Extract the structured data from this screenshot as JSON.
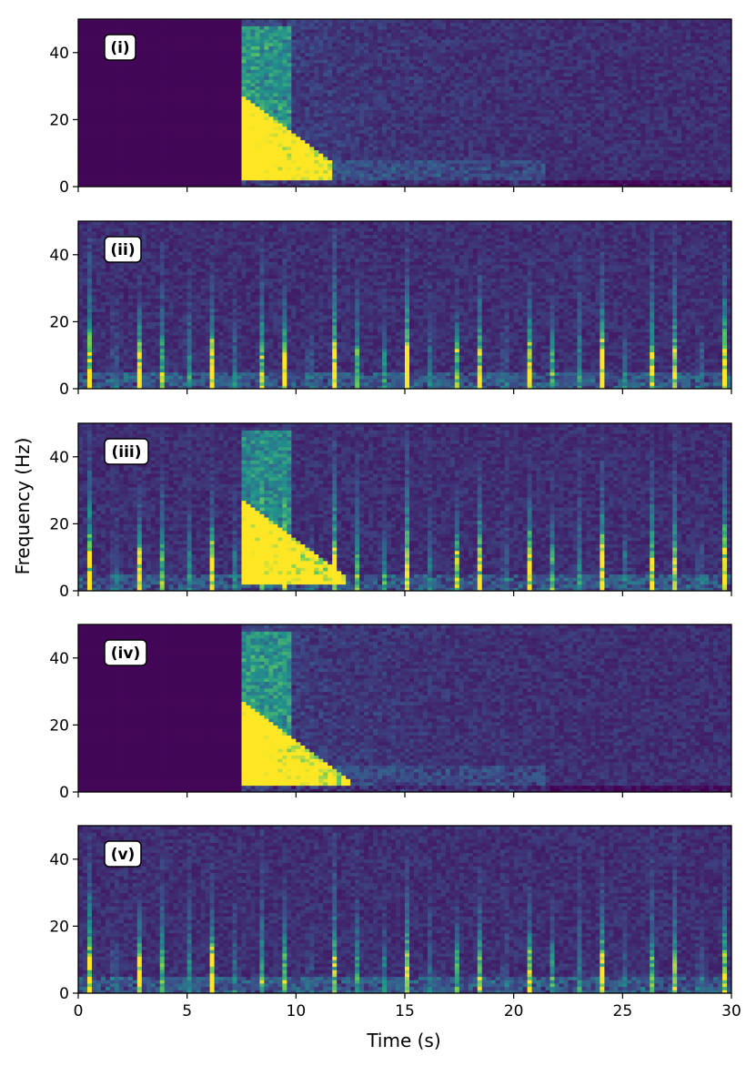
{
  "chart_data": {
    "type": "heatmap",
    "title": "",
    "xlabel": "Time (s)",
    "ylabel": "Frequency (Hz)",
    "xlim": [
      0,
      30
    ],
    "ylim": [
      0,
      50
    ],
    "x_ticks": [
      0,
      5,
      10,
      15,
      20,
      25,
      30
    ],
    "y_ticks": [
      0,
      20,
      40
    ],
    "colormap": "viridis",
    "colormap_stops": [
      "#440154",
      "#3b528b",
      "#21918c",
      "#5ec962",
      "#fde725"
    ],
    "grid": false,
    "legend": "none",
    "panels": [
      {
        "label": "(i)",
        "rhythmic_bursts": false,
        "broadband_event": true,
        "event_start_s": 7.5
      },
      {
        "label": "(ii)",
        "rhythmic_bursts": true,
        "broadband_event": false
      },
      {
        "label": "(iii)",
        "rhythmic_bursts": true,
        "broadband_event": true,
        "event_start_s": 7.5
      },
      {
        "label": "(iv)",
        "rhythmic_bursts": false,
        "broadband_event": true,
        "event_start_s": 7.5
      },
      {
        "label": "(v)",
        "rhythmic_bursts": true,
        "broadband_event": false
      }
    ]
  }
}
